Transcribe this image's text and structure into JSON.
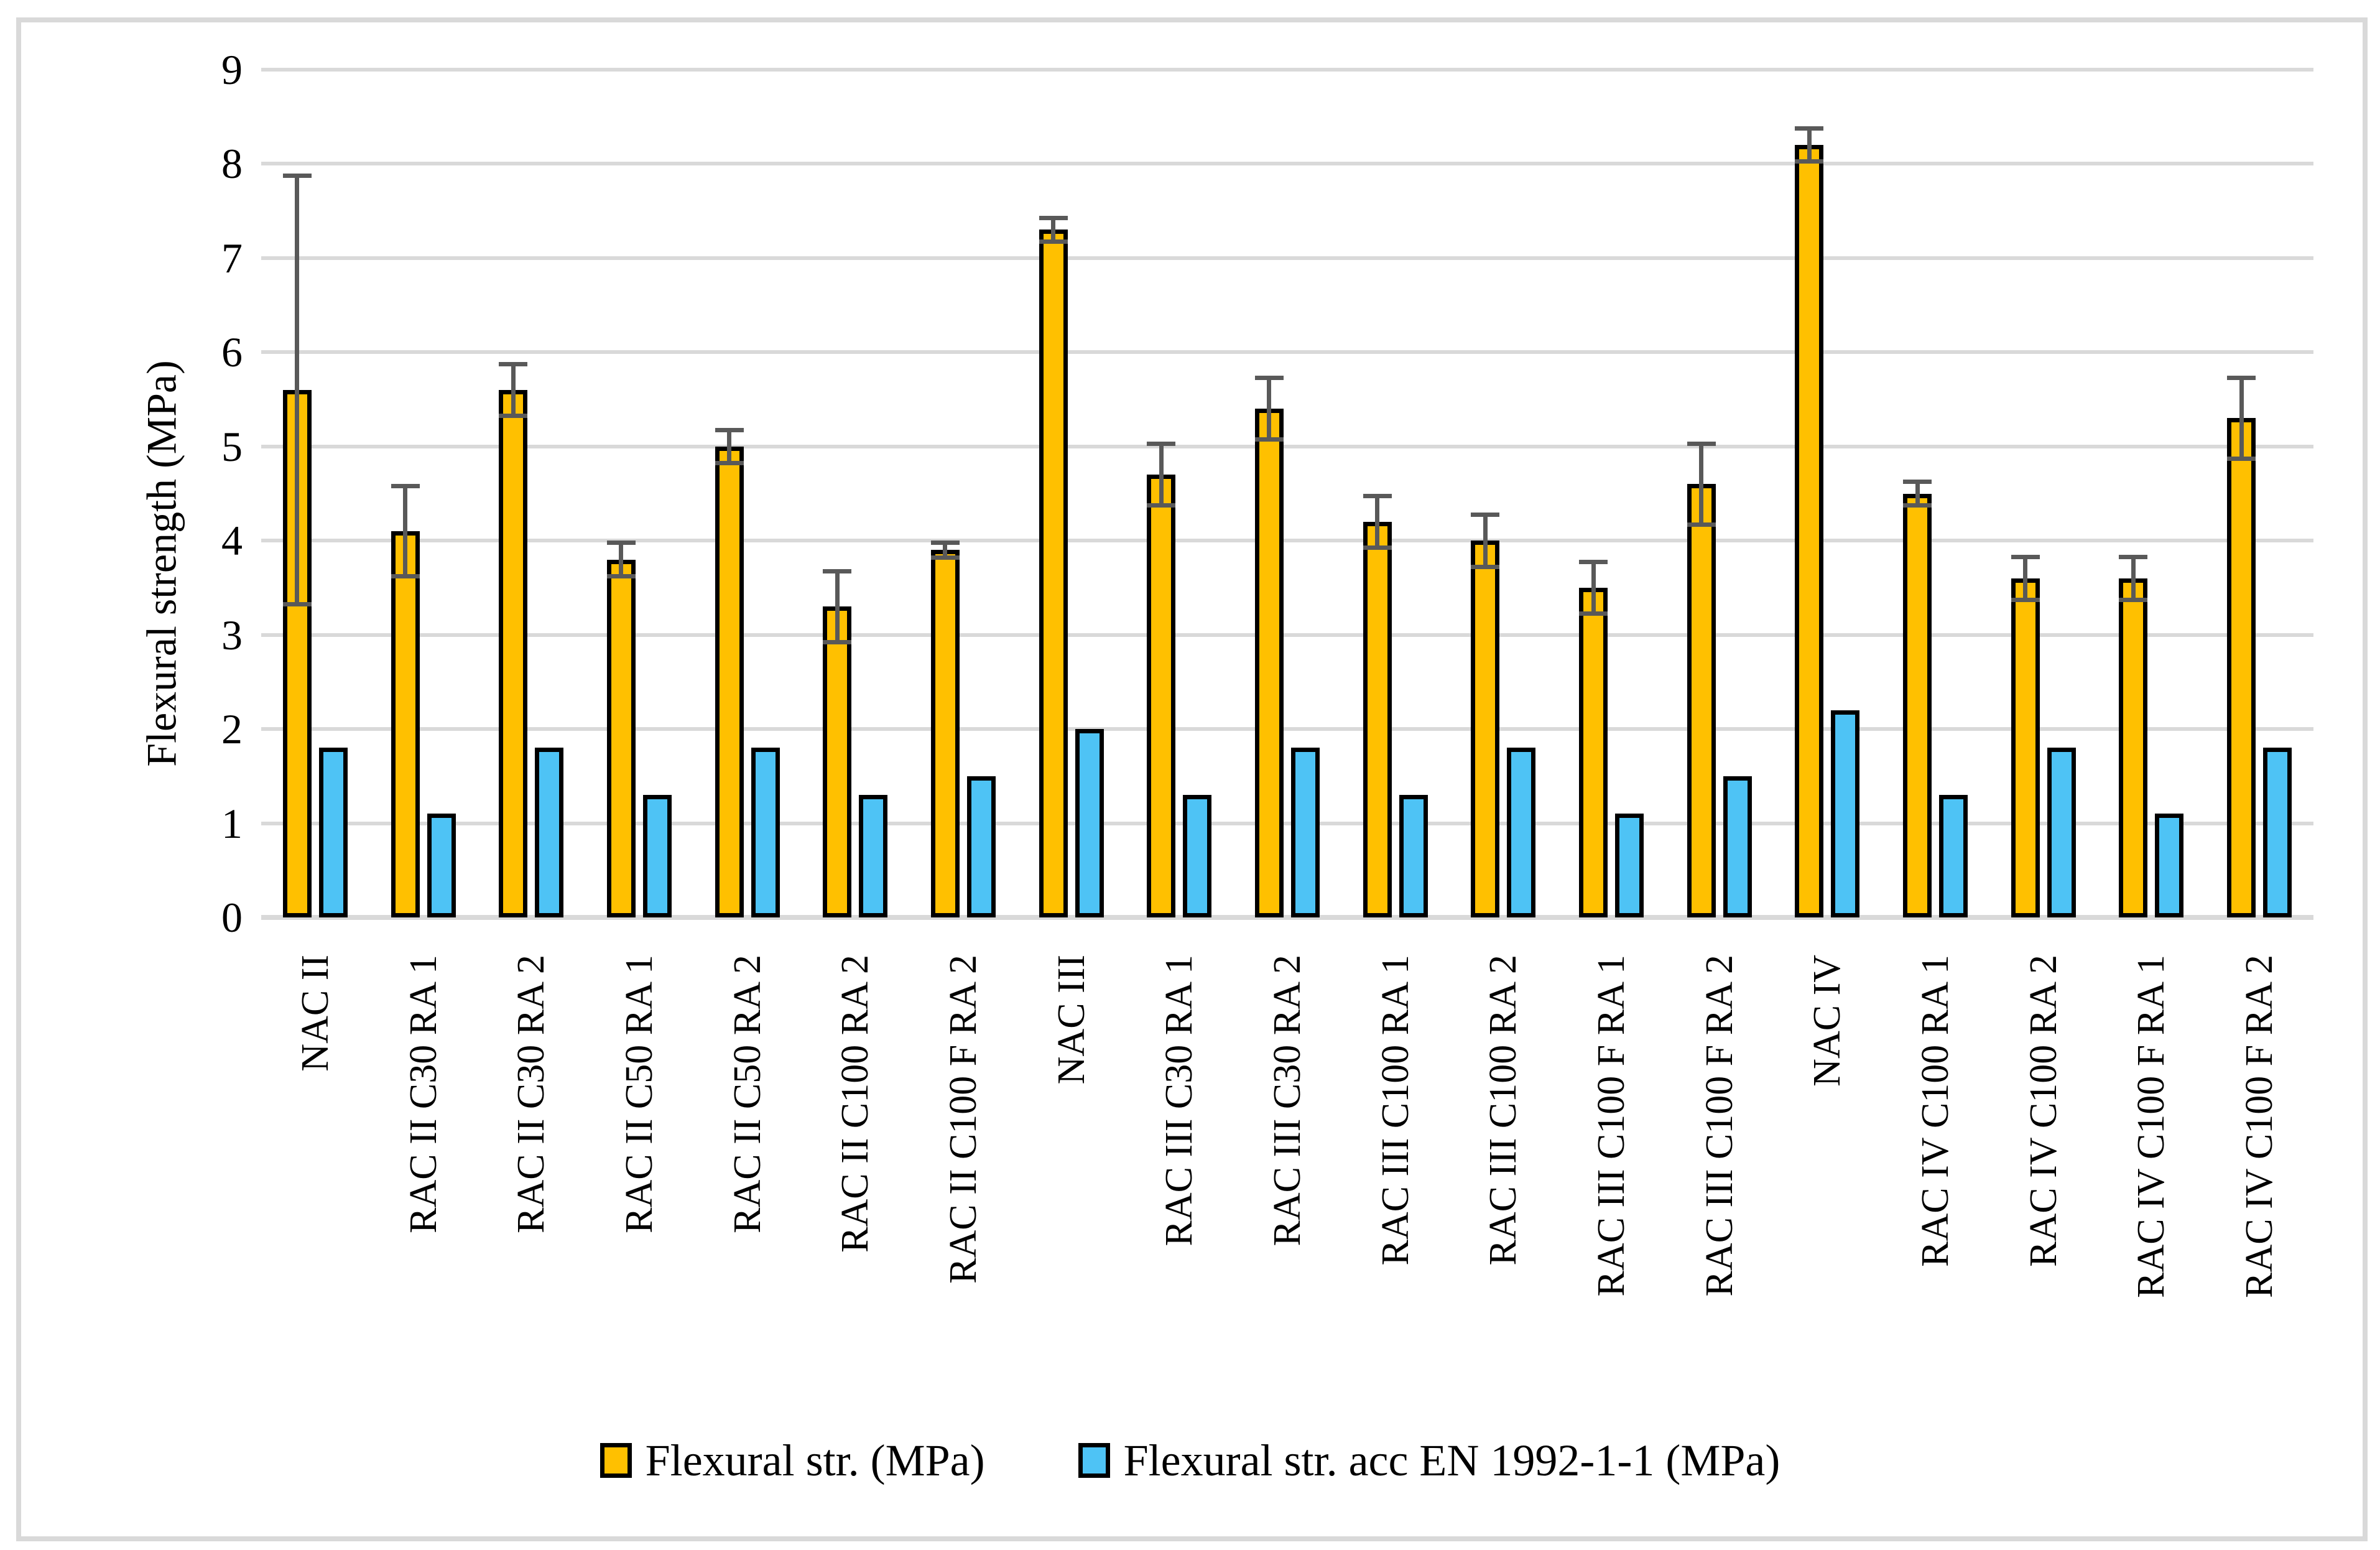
{
  "figure": {
    "background": "#FFFFFF",
    "border_color": "#D9D9D9"
  },
  "colors": {
    "series1": "#FFC000",
    "series2": "#4EC3F5",
    "bar_outline": "#000000",
    "gridline": "#D9D9D9",
    "error_bar": "#595959"
  },
  "chart_data": {
    "type": "bar",
    "title": "",
    "xlabel": "",
    "ylabel": "Flexural strength (MPa)",
    "ylim": [
      0,
      9
    ],
    "yticks": [
      0,
      1,
      2,
      3,
      4,
      5,
      6,
      7,
      8,
      9
    ],
    "grid": "horizontal",
    "legend_position": "bottom",
    "categories": [
      "NAC II",
      "RAC II C30 RA 1",
      "RAC II C30 RA 2",
      "RAC II C50 RA 1",
      "RAC II C50 RA 2",
      "RAC II C100 RA 2",
      "RAC II C100 F RA 2",
      "NAC III",
      "RAC III C30 RA 1",
      "RAC III C30 RA 2",
      "RAC III C100 RA 1",
      "RAC III C100 RA 2",
      "RAC III C100 F RA 1",
      "RAC III C100 F RA 2",
      "NAC IV",
      "RAC IV C100 RA 1",
      "RAC IV C100 RA 2",
      "RAC IV C100 F RA 1",
      "RAC IV C100 F RA 2"
    ],
    "series": [
      {
        "name": "Flexural str. (MPa)",
        "color": "#FFC000",
        "values": [
          5.6,
          4.1,
          5.6,
          3.8,
          5.0,
          3.3,
          3.9,
          7.3,
          4.7,
          5.4,
          4.2,
          4.0,
          3.5,
          4.6,
          8.2,
          4.5,
          3.6,
          3.6,
          5.3
        ],
        "error_bars": [
          2.3,
          0.5,
          0.3,
          0.2,
          0.2,
          0.4,
          0.1,
          0.15,
          0.35,
          0.35,
          0.3,
          0.3,
          0.3,
          0.45,
          0.2,
          0.15,
          0.25,
          0.25,
          0.45
        ]
      },
      {
        "name": "Flexural str. acc EN 1992-1-1 (MPa)",
        "color": "#4EC3F5",
        "values": [
          1.8,
          1.1,
          1.8,
          1.3,
          1.8,
          1.3,
          1.5,
          2.0,
          1.3,
          1.8,
          1.3,
          1.8,
          1.1,
          1.5,
          2.2,
          1.3,
          1.8,
          1.1,
          1.8
        ],
        "error_bars": null
      }
    ]
  }
}
